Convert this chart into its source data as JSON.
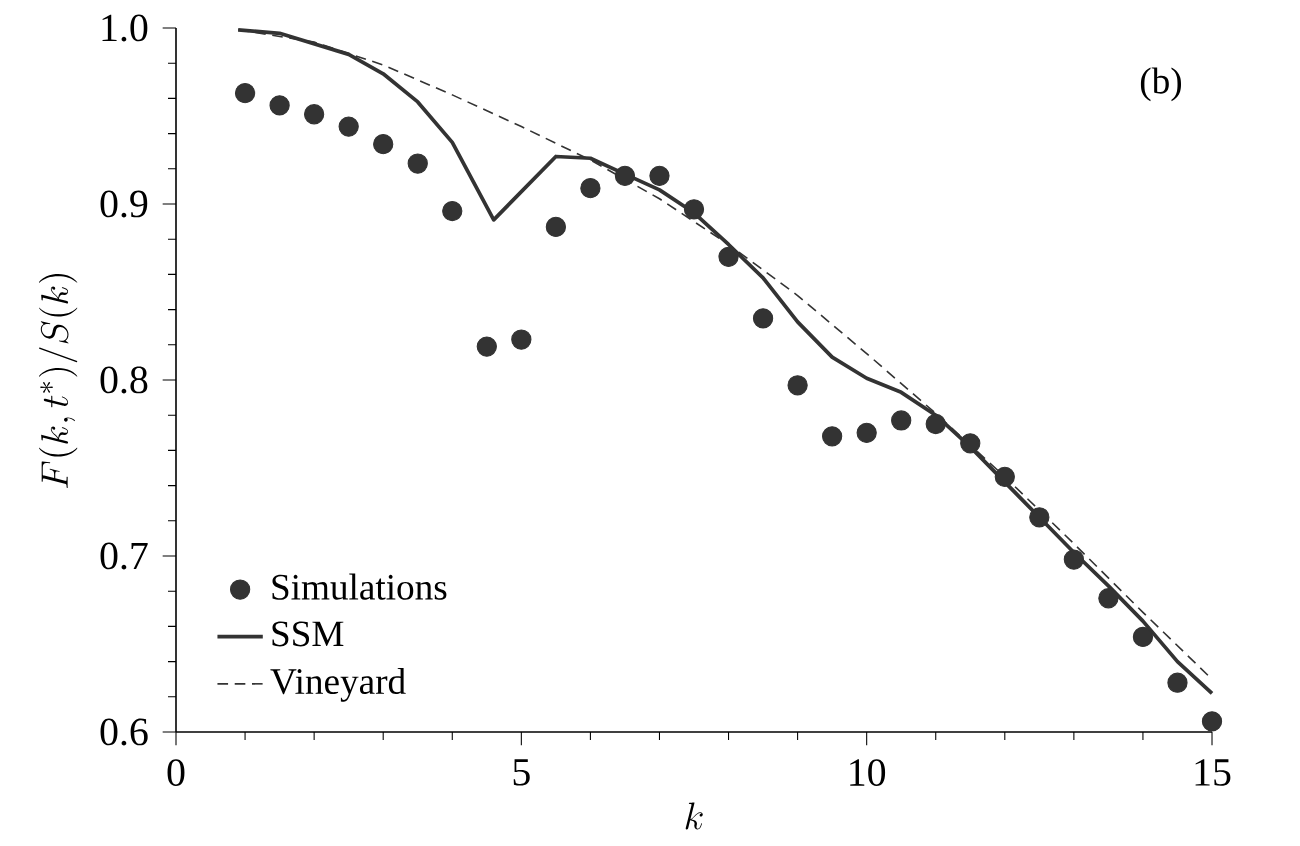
{
  "chart_data": {
    "type": "line",
    "xlabel": "k",
    "ylabel": "F(k,t^*)/S(k)",
    "annotations": [
      "(b)"
    ],
    "xlim": [
      0,
      15
    ],
    "ylim": [
      0.6,
      1.0
    ],
    "xticks": [
      0,
      5,
      10,
      15
    ],
    "yticks": [
      {
        "value": 0.6,
        "label": "0.6"
      },
      {
        "value": 0.7,
        "label": "0.7"
      },
      {
        "value": 0.8,
        "label": "0.8"
      },
      {
        "value": 0.9,
        "label": "0.9"
      },
      {
        "value": 1.0,
        "label": "1.0"
      }
    ],
    "legend": "bottom left",
    "marker": "circle",
    "series": [
      {
        "name": "Simulations",
        "type": "scatter",
        "color": "#333333",
        "x": [
          1,
          1.5,
          2,
          2.5,
          3,
          3.5,
          4,
          4.5,
          5,
          5.5,
          6,
          6.5,
          7,
          7.5,
          8,
          8.5,
          9,
          9.5,
          10,
          10.5,
          11,
          11.5,
          12,
          12.5,
          13,
          13.5,
          14,
          14.5,
          15
        ],
        "values": [
          0.963,
          0.956,
          0.951,
          0.944,
          0.934,
          0.923,
          0.896,
          0.819,
          0.823,
          0.887,
          0.909,
          0.916,
          0.916,
          0.897,
          0.87,
          0.835,
          0.797,
          0.768,
          0.77,
          0.777,
          0.775,
          0.764,
          0.745,
          0.722,
          0.698,
          0.676,
          0.654,
          0.628,
          0.606
        ]
      },
      {
        "name": "SSM",
        "marker": "none",
        "line_style": "solid",
        "color": "#333333",
        "x": [
          0.9,
          1.5,
          2.5,
          3,
          3.5,
          4,
          4.6,
          5.5,
          6,
          6.5,
          7,
          7.5,
          8,
          8.5,
          9,
          9.5,
          10,
          10.5,
          11,
          11.5,
          12,
          12.5,
          13,
          13.5,
          14,
          14.5,
          15
        ],
        "values": [
          0.999,
          0.997,
          0.985,
          0.974,
          0.958,
          0.935,
          0.891,
          0.927,
          0.926,
          0.917,
          0.908,
          0.895,
          0.877,
          0.858,
          0.833,
          0.813,
          0.801,
          0.793,
          0.78,
          0.762,
          0.742,
          0.722,
          0.702,
          0.683,
          0.663,
          0.64,
          0.622
        ]
      },
      {
        "name": "Vineyard",
        "marker": "none",
        "line_style": "dashed",
        "color": "#333333",
        "x": [
          0.9,
          2,
          3,
          4,
          5,
          6,
          7,
          8,
          9,
          10,
          11,
          12,
          13,
          14,
          15
        ],
        "values": [
          0.999,
          0.992,
          0.979,
          0.962,
          0.944,
          0.925,
          0.903,
          0.877,
          0.848,
          0.815,
          0.781,
          0.745,
          0.707,
          0.668,
          0.63
        ]
      }
    ]
  }
}
